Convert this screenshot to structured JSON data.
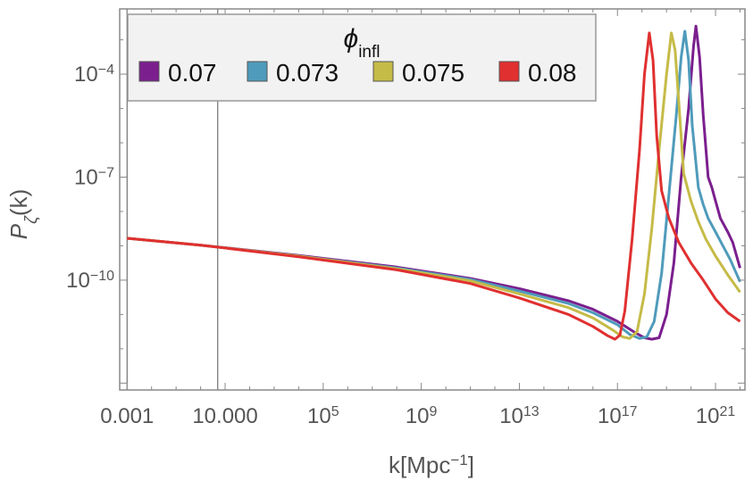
{
  "chart_data": {
    "type": "line",
    "xlabel_base": "k[Mpc",
    "xlabel_exp": "−1",
    "xlabel_tail": "]",
    "ylabel_main": "P",
    "ylabel_sub": "ζ",
    "ylabel_tail": "(k)",
    "x_log_range": [
      -3.3,
      22.2
    ],
    "y_log_range": [
      -13.2,
      -2.1
    ],
    "x_scale": "log",
    "y_scale": "log",
    "x_ticks": [
      {
        "value": 0.001,
        "label": "0.001"
      },
      {
        "value": 10,
        "label": "10.000"
      },
      {
        "value": 100000,
        "base": "10",
        "exp": "5"
      },
      {
        "value": 1000000000.0,
        "base": "10",
        "exp": "9"
      },
      {
        "value": 10000000000000.0,
        "base": "10",
        "exp": "13"
      },
      {
        "value": 1e+17,
        "base": "10",
        "exp": "17"
      },
      {
        "value": 1e+21,
        "base": "10",
        "exp": "21"
      }
    ],
    "y_ticks": [
      {
        "value": 0.0001,
        "base": "10",
        "exp": "−4"
      },
      {
        "value": 1e-07,
        "base": "10",
        "exp": "−7"
      },
      {
        "value": 1e-10,
        "base": "10",
        "exp": "−10"
      }
    ],
    "vertical_lines": [
      0.001,
      5
    ],
    "legend": {
      "title_symbol": "ϕ",
      "title_sub": "infl",
      "placement": "top-left"
    },
    "series": [
      {
        "name": "0.07",
        "color": "#7b1f8e",
        "log_points": [
          [
            -3,
            -8.78
          ],
          [
            0,
            -8.98
          ],
          [
            4,
            -9.28
          ],
          [
            8,
            -9.62
          ],
          [
            11,
            -9.95
          ],
          [
            13,
            -10.25
          ],
          [
            15,
            -10.6
          ],
          [
            16,
            -10.85
          ],
          [
            17,
            -11.2
          ],
          [
            17.7,
            -11.52
          ],
          [
            18.1,
            -11.68
          ],
          [
            18.4,
            -11.72
          ],
          [
            18.7,
            -11.68
          ],
          [
            19.0,
            -11.0
          ],
          [
            19.3,
            -9.5
          ],
          [
            19.6,
            -7.0
          ],
          [
            19.9,
            -5.0
          ],
          [
            20.1,
            -3.2
          ],
          [
            20.2,
            -2.6
          ],
          [
            20.35,
            -3.5
          ],
          [
            20.5,
            -5.2
          ],
          [
            20.7,
            -7.0
          ],
          [
            20.85,
            -7.3
          ],
          [
            21.0,
            -7.7
          ],
          [
            21.2,
            -8.2
          ],
          [
            21.5,
            -8.6
          ],
          [
            21.7,
            -8.9
          ],
          [
            22.0,
            -9.65
          ]
        ]
      },
      {
        "name": "0.073",
        "color": "#4f9bbb",
        "log_points": [
          [
            -3,
            -8.78
          ],
          [
            0,
            -8.98
          ],
          [
            4,
            -9.3
          ],
          [
            8,
            -9.65
          ],
          [
            11,
            -9.98
          ],
          [
            13,
            -10.32
          ],
          [
            15,
            -10.68
          ],
          [
            16,
            -10.95
          ],
          [
            17,
            -11.3
          ],
          [
            17.5,
            -11.58
          ],
          [
            17.9,
            -11.7
          ],
          [
            18.2,
            -11.65
          ],
          [
            18.5,
            -11.2
          ],
          [
            18.8,
            -9.8
          ],
          [
            19.1,
            -7.5
          ],
          [
            19.4,
            -5.2
          ],
          [
            19.6,
            -3.5
          ],
          [
            19.75,
            -2.75
          ],
          [
            19.9,
            -3.6
          ],
          [
            20.05,
            -5.5
          ],
          [
            20.3,
            -7.3
          ],
          [
            20.5,
            -7.8
          ],
          [
            20.7,
            -8.2
          ],
          [
            21.0,
            -8.6
          ],
          [
            21.3,
            -9.0
          ],
          [
            21.6,
            -9.4
          ],
          [
            22.0,
            -10.05
          ]
        ]
      },
      {
        "name": "0.075",
        "color": "#c5bb47",
        "log_points": [
          [
            -3,
            -8.78
          ],
          [
            0,
            -8.98
          ],
          [
            4,
            -9.3
          ],
          [
            8,
            -9.67
          ],
          [
            11,
            -10.02
          ],
          [
            13,
            -10.4
          ],
          [
            15,
            -10.8
          ],
          [
            16,
            -11.1
          ],
          [
            16.8,
            -11.45
          ],
          [
            17.2,
            -11.65
          ],
          [
            17.5,
            -11.7
          ],
          [
            17.8,
            -11.5
          ],
          [
            18.1,
            -10.4
          ],
          [
            18.4,
            -8.5
          ],
          [
            18.7,
            -6.2
          ],
          [
            19.0,
            -4.0
          ],
          [
            19.2,
            -2.8
          ],
          [
            19.35,
            -3.3
          ],
          [
            19.5,
            -4.8
          ],
          [
            19.7,
            -6.9
          ],
          [
            20.0,
            -7.7
          ],
          [
            20.3,
            -8.3
          ],
          [
            20.6,
            -8.8
          ],
          [
            21.0,
            -9.3
          ],
          [
            21.5,
            -9.85
          ],
          [
            22.0,
            -10.35
          ]
        ]
      },
      {
        "name": "0.08",
        "color": "#e03030",
        "log_points": [
          [
            -3,
            -8.78
          ],
          [
            0,
            -8.98
          ],
          [
            4,
            -9.32
          ],
          [
            8,
            -9.7
          ],
          [
            11,
            -10.1
          ],
          [
            13,
            -10.52
          ],
          [
            15,
            -11.0
          ],
          [
            16,
            -11.35
          ],
          [
            16.6,
            -11.62
          ],
          [
            16.9,
            -11.72
          ],
          [
            17.1,
            -11.6
          ],
          [
            17.3,
            -10.9
          ],
          [
            17.6,
            -8.8
          ],
          [
            17.9,
            -6.2
          ],
          [
            18.1,
            -4.0
          ],
          [
            18.3,
            -2.8
          ],
          [
            18.45,
            -3.6
          ],
          [
            18.6,
            -5.8
          ],
          [
            18.8,
            -7.4
          ],
          [
            19.1,
            -8.2
          ],
          [
            19.5,
            -8.9
          ],
          [
            20.0,
            -9.5
          ],
          [
            20.5,
            -10.0
          ],
          [
            21.0,
            -10.55
          ],
          [
            21.5,
            -10.95
          ],
          [
            22.0,
            -11.2
          ]
        ]
      }
    ]
  }
}
